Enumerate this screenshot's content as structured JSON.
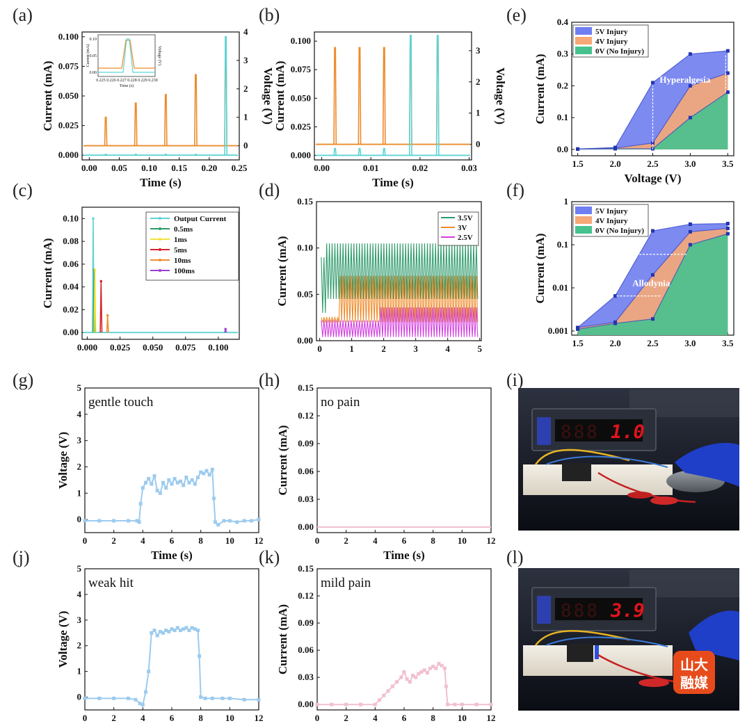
{
  "figure": {
    "panel_labels": [
      "(a)",
      "(b)",
      "(c)",
      "(d)",
      "(e)",
      "(f)",
      "(g)",
      "(h)",
      "(i)",
      "(j)",
      "(k)",
      "(l)"
    ]
  },
  "photos": {
    "i": {
      "display": "1.0",
      "color": "#e0141b"
    },
    "l": {
      "display": "3.9",
      "color": "#e0141b",
      "watermark": [
        "山大",
        "融媒"
      ]
    }
  },
  "colors": {
    "cyan": "#5ed3d4",
    "orange": "#ee8a2a",
    "green_dark": "#2e9a6a",
    "yellow": "#f2e33a",
    "red": "#d4262b",
    "orange2": "#ec8e2e",
    "purple": "#9b3fd3",
    "magenta": "#d33fe0",
    "blue_fill": "#6f7ef0",
    "orange_fill": "#f6a877",
    "green_fill": "#47c28e",
    "light_blue": "#9ccbee",
    "pink": "#f0c0d0"
  },
  "chart_data": [
    {
      "id": "a",
      "type": "line",
      "xlabel": "Time (s)",
      "ylabel": "Current (mA)",
      "y2label": "Voltage (V)",
      "xlim": [
        -0.012,
        0.25
      ],
      "ylim": [
        -0.004,
        0.104
      ],
      "y2lim": [
        -0.5,
        4
      ],
      "xticks": [
        0.0,
        0.05,
        0.1,
        0.15,
        0.2,
        0.25
      ],
      "xticklabels": [
        "0.00",
        "0.05",
        "0.10",
        "0.15",
        "0.20",
        "0.25"
      ],
      "yticks": [
        0.0,
        0.025,
        0.05,
        0.075,
        0.1
      ],
      "yticklabels": [
        "0.000",
        "0.025",
        "0.050",
        "0.075",
        "0.100"
      ],
      "y2ticks": [
        0,
        1,
        2,
        3,
        4
      ],
      "y2ticklabels": [
        "0",
        "1",
        "2",
        "3",
        "4"
      ],
      "series": [
        {
          "kind": "spikes",
          "axis": "y2",
          "color": "orange",
          "baseline": 0,
          "x": [
            0.0275,
            0.0775,
            0.1275,
            0.1775,
            0.2275
          ],
          "values": [
            1.0,
            1.5,
            1.8,
            2.5,
            3.0
          ]
        },
        {
          "kind": "spikes",
          "axis": "y",
          "color": "cyan",
          "baseline": 0.0,
          "x": [
            0.0275,
            0.0775,
            0.1275,
            0.1775,
            0.2275
          ],
          "values": [
            0.0008,
            0.0008,
            0.0008,
            0.0008,
            0.1
          ]
        }
      ],
      "inset": {
        "xlabel": "Time (s)",
        "ylabel": "Current (mA)",
        "y2label": "Voltage (V)",
        "xticklabels": [
          "0.225",
          "0.226",
          "0.227",
          "0.228",
          "0.229",
          "0.230"
        ],
        "yticklabels": [
          "0.00",
          "0.05",
          "0.10"
        ]
      }
    },
    {
      "id": "b",
      "type": "line",
      "xlabel": "Time (s)",
      "ylabel": "Current (mA)",
      "y2label": "Voltage (V)",
      "xlim": [
        -0.0015,
        0.0305
      ],
      "ylim": [
        -0.004,
        0.108
      ],
      "y2lim": [
        -0.5,
        3.6
      ],
      "xticks": [
        0.0,
        0.01,
        0.02,
        0.03
      ],
      "xticklabels": [
        "0.00",
        "0.01",
        "0.02",
        "0.03"
      ],
      "yticks": [
        0.0,
        0.025,
        0.05,
        0.075,
        0.1
      ],
      "yticklabels": [
        "0.000",
        "0.025",
        "0.050",
        "0.075",
        "0.100"
      ],
      "y2ticks": [
        0,
        1,
        2,
        3
      ],
      "y2ticklabels": [
        "0",
        "1",
        "2",
        "3"
      ],
      "series": [
        {
          "kind": "spikes",
          "axis": "y2",
          "color": "orange",
          "baseline": 0,
          "x": [
            0.0027,
            0.0077,
            0.0127,
            0.0181,
            0.0236
          ],
          "values": [
            3.1,
            3.1,
            3.1,
            3.3,
            3.3
          ]
        },
        {
          "kind": "spikes",
          "axis": "y",
          "color": "cyan",
          "baseline": 0.0,
          "x": [
            0.0027,
            0.0077,
            0.0127,
            0.0181,
            0.0236
          ],
          "values": [
            0.006,
            0.006,
            0.006,
            0.105,
            0.105
          ]
        }
      ]
    },
    {
      "id": "c",
      "type": "line",
      "xlabel": "",
      "ylabel": "Current (mA)",
      "xlim": [
        -0.004,
        0.116
      ],
      "ylim": [
        -0.006,
        0.11
      ],
      "xticks": [
        0.0,
        0.025,
        0.05,
        0.075,
        0.1
      ],
      "xticklabels": [
        "0.000",
        "0.025",
        "0.050",
        "0.075",
        "0.100"
      ],
      "yticks": [
        0.0,
        0.02,
        0.04,
        0.06,
        0.08,
        0.1
      ],
      "yticklabels": [
        "0.00",
        "0.02",
        "0.04",
        "0.06",
        "0.08",
        "0.10"
      ],
      "legend": [
        "Output Current",
        "0.5ms",
        "1ms",
        "5ms",
        "10ms",
        "100ms"
      ],
      "legend_colors": [
        "cyan",
        "green_dark",
        "yellow",
        "red",
        "orange2",
        "purple"
      ],
      "series": [
        {
          "name": "Output Current",
          "color": "cyan",
          "kind": "spikes",
          "baseline": 0.0,
          "x": [
            0.0045
          ],
          "values": [
            0.1
          ]
        },
        {
          "name": "0.5ms",
          "color": "green_dark",
          "kind": "spikes",
          "baseline": 0.0,
          "x": [
            0.0052
          ],
          "values": [
            0.055
          ]
        },
        {
          "name": "1ms",
          "color": "yellow",
          "kind": "spikes",
          "baseline": 0.0,
          "x": [
            0.0058
          ],
          "values": [
            0.055
          ]
        },
        {
          "name": "5ms",
          "color": "red",
          "kind": "spikes",
          "baseline": 0.0,
          "x": [
            0.0105
          ],
          "values": [
            0.045
          ]
        },
        {
          "name": "10ms",
          "color": "orange2",
          "kind": "spikes",
          "baseline": 0.0,
          "x": [
            0.0155
          ],
          "values": [
            0.015
          ]
        },
        {
          "name": "100ms",
          "color": "purple",
          "kind": "spikes",
          "baseline": 0.0,
          "x": [
            0.1055
          ],
          "values": [
            0.003
          ]
        }
      ]
    },
    {
      "id": "d",
      "type": "line",
      "xlabel": "",
      "ylabel": "Current (mA)",
      "xlim": [
        -0.1,
        5.05
      ],
      "ylim": [
        0.0,
        0.15
      ],
      "xticks": [
        0,
        1,
        2,
        3,
        4,
        5
      ],
      "xticklabels": [
        "0",
        "1",
        "2",
        "3",
        "4",
        "5"
      ],
      "yticks": [
        0.0,
        0.05,
        0.1,
        0.15
      ],
      "yticklabels": [
        "0.00",
        "0.05",
        "0.10",
        "0.15"
      ],
      "legend": [
        "3.5V",
        "3V",
        "2.5V"
      ],
      "legend_colors": [
        "green_dark",
        "orange",
        "magenta"
      ],
      "series": [
        {
          "name": "3.5V",
          "color": "green_dark",
          "kind": "osc",
          "t_start": 0.05,
          "t_end": 4.95,
          "period": 0.085,
          "segments": [
            {
              "t0": 0.05,
              "t1": 0.2,
              "low": 0.03,
              "high": 0.09
            },
            {
              "t0": 0.2,
              "t1": 4.95,
              "low": 0.045,
              "high": 0.105
            }
          ]
        },
        {
          "name": "3V",
          "color": "orange",
          "kind": "osc",
          "t_start": 0.05,
          "t_end": 4.95,
          "period": 0.085,
          "segments": [
            {
              "t0": 0.05,
              "t1": 0.6,
              "low": 0.02,
              "high": 0.025
            },
            {
              "t0": 0.6,
              "t1": 4.95,
              "low": 0.02,
              "high": 0.07
            }
          ]
        },
        {
          "name": "2.5V",
          "color": "magenta",
          "kind": "osc",
          "t_start": 0.05,
          "t_end": 4.95,
          "period": 0.085,
          "segments": [
            {
              "t0": 0.05,
              "t1": 1.85,
              "low": 0.004,
              "high": 0.022
            },
            {
              "t0": 1.85,
              "t1": 4.95,
              "low": 0.004,
              "high": 0.036
            }
          ]
        }
      ]
    },
    {
      "id": "e",
      "type": "area",
      "xlabel": "Voltage (V)",
      "ylabel": "Current (mA)",
      "xlim": [
        1.42,
        3.58
      ],
      "ylim": [
        -0.02,
        0.4
      ],
      "xticks": [
        1.5,
        2.0,
        2.5,
        3.0,
        3.5
      ],
      "xticklabels": [
        "1.5",
        "2.0",
        "2.5",
        "3.0",
        "3.5"
      ],
      "yticks": [
        0.0,
        0.1,
        0.2,
        0.3,
        0.4
      ],
      "yticklabels": [
        "0.0",
        "0.1",
        "0.2",
        "0.3",
        "0.4"
      ],
      "x": [
        1.5,
        2.0,
        2.5,
        3.0,
        3.5
      ],
      "series": [
        {
          "name": "5V Injury",
          "color": "blue_fill",
          "values": [
            0.001,
            0.006,
            0.21,
            0.3,
            0.31
          ]
        },
        {
          "name": "4V Injury",
          "color": "orange_fill",
          "values": [
            0.001,
            0.004,
            0.02,
            0.2,
            0.24
          ]
        },
        {
          "name": "0V (No Injury)",
          "color": "green_fill",
          "values": [
            0.001,
            0.002,
            0.002,
            0.1,
            0.18
          ]
        }
      ],
      "annotation": "Hyperalgesia"
    },
    {
      "id": "f",
      "type": "area",
      "scale": "log",
      "xlabel": "",
      "ylabel": "Current (mA)",
      "xlim": [
        1.42,
        3.58
      ],
      "ylim": [
        0.0008,
        1.0
      ],
      "xticks": [
        1.5,
        2.0,
        2.5,
        3.0,
        3.5
      ],
      "xticklabels": [
        "1.5",
        "2.0",
        "2.5",
        "3.0",
        "3.5"
      ],
      "yticks": [
        0.001,
        0.01,
        0.1,
        1
      ],
      "yticklabels": [
        "0.001",
        "0.01",
        "0.1",
        "1"
      ],
      "x": [
        1.5,
        2.0,
        2.5,
        3.0,
        3.5
      ],
      "series": [
        {
          "name": "5V Injury",
          "color": "blue_fill",
          "values": [
            0.0012,
            0.0065,
            0.21,
            0.3,
            0.31
          ]
        },
        {
          "name": "4V Injury",
          "color": "orange_fill",
          "values": [
            0.0012,
            0.0016,
            0.02,
            0.2,
            0.24
          ]
        },
        {
          "name": "0V (No Injury)",
          "color": "green_fill",
          "values": [
            0.0011,
            0.0015,
            0.0019,
            0.1,
            0.18
          ]
        }
      ],
      "annotation": "Allodynia"
    },
    {
      "id": "g",
      "type": "line",
      "xlabel": "Time (s)",
      "ylabel": "Voltage (V)",
      "xlim": [
        0,
        12
      ],
      "ylim": [
        -0.5,
        5
      ],
      "xticks": [
        0,
        2,
        4,
        6,
        8,
        10,
        12
      ],
      "xticklabels": [
        "0",
        "2",
        "4",
        "6",
        "8",
        "10",
        "12"
      ],
      "yticks": [
        0,
        1,
        2,
        3,
        4,
        5
      ],
      "yticklabels": [
        "0",
        "1",
        "2",
        "3",
        "4",
        "5"
      ],
      "annotation": "gentle touch",
      "series": [
        {
          "color": "light_blue",
          "markers": true,
          "x": [
            0,
            1,
            2,
            3,
            3.6,
            3.75,
            3.85,
            4.0,
            4.2,
            4.4,
            4.6,
            4.8,
            5.0,
            5.2,
            5.4,
            5.6,
            5.8,
            6.0,
            6.2,
            6.4,
            6.6,
            6.8,
            7.0,
            7.2,
            7.4,
            7.6,
            7.8,
            8.0,
            8.2,
            8.4,
            8.6,
            8.8,
            8.9,
            9.0,
            9.2,
            9.6,
            10,
            10.5,
            11,
            11.5,
            12
          ],
          "values": [
            -0.05,
            -0.05,
            -0.05,
            -0.05,
            -0.05,
            -0.1,
            0.6,
            1.2,
            1.4,
            1.55,
            1.35,
            1.65,
            1.1,
            1.0,
            1.4,
            1.2,
            1.5,
            1.35,
            1.55,
            1.4,
            1.45,
            1.3,
            1.6,
            1.4,
            1.5,
            1.35,
            1.6,
            1.8,
            1.75,
            1.85,
            1.7,
            1.9,
            0.8,
            -0.1,
            -0.2,
            -0.05,
            -0.05,
            -0.1,
            -0.05,
            -0.05,
            0.0
          ]
        }
      ]
    },
    {
      "id": "h",
      "type": "line",
      "xlabel": "Time (s)",
      "ylabel": "Current (mA)",
      "xlim": [
        0,
        12
      ],
      "ylim": [
        -0.006,
        0.15
      ],
      "xticks": [
        0,
        2,
        4,
        6,
        8,
        10,
        12
      ],
      "xticklabels": [
        "0",
        "2",
        "4",
        "6",
        "8",
        "10",
        "12"
      ],
      "yticks": [
        0.0,
        0.03,
        0.06,
        0.09,
        0.12,
        0.15
      ],
      "yticklabels": [
        "0.00",
        "0.03",
        "0.06",
        "0.09",
        "0.12",
        "0.15"
      ],
      "annotation": "no pain",
      "series": [
        {
          "color": "pink",
          "markers": false,
          "x": [
            0,
            12
          ],
          "values": [
            0.0,
            0.0
          ]
        }
      ]
    },
    {
      "id": "j",
      "type": "line",
      "xlabel": "",
      "ylabel": "Voltage (V)",
      "xlim": [
        0,
        12
      ],
      "ylim": [
        -0.5,
        5
      ],
      "xticks": [
        0,
        2,
        4,
        6,
        8,
        10,
        12
      ],
      "xticklabels": [
        "0",
        "2",
        "4",
        "6",
        "8",
        "10",
        "12"
      ],
      "yticks": [
        0,
        1,
        2,
        3,
        4,
        5
      ],
      "yticklabels": [
        "0",
        "1",
        "2",
        "3",
        "4",
        "5"
      ],
      "annotation": "weak hit",
      "series": [
        {
          "color": "light_blue",
          "markers": true,
          "x": [
            0,
            1,
            2,
            3,
            3.5,
            3.8,
            4.0,
            4.2,
            4.4,
            4.6,
            4.8,
            5.0,
            5.2,
            5.4,
            5.6,
            5.8,
            6.0,
            6.2,
            6.4,
            6.6,
            6.8,
            7.0,
            7.2,
            7.4,
            7.6,
            7.8,
            7.9,
            8.0,
            8.3,
            8.8,
            9.5,
            10,
            11,
            12
          ],
          "values": [
            -0.05,
            -0.05,
            -0.05,
            -0.05,
            -0.1,
            -0.25,
            -0.3,
            0.2,
            1.0,
            2.5,
            2.6,
            2.4,
            2.55,
            2.5,
            2.6,
            2.55,
            2.65,
            2.6,
            2.7,
            2.6,
            2.65,
            2.7,
            2.6,
            2.7,
            2.65,
            2.6,
            1.6,
            0.0,
            -0.05,
            -0.05,
            -0.05,
            -0.05,
            -0.1,
            -0.1
          ]
        }
      ]
    },
    {
      "id": "k",
      "type": "line",
      "xlabel": "",
      "ylabel": "Current (mA)",
      "xlim": [
        0,
        12
      ],
      "ylim": [
        -0.006,
        0.15
      ],
      "xticks": [
        0,
        2,
        4,
        6,
        8,
        10,
        12
      ],
      "xticklabels": [
        "0",
        "2",
        "4",
        "6",
        "8",
        "10",
        "12"
      ],
      "yticks": [
        0.0,
        0.03,
        0.06,
        0.09,
        0.12,
        0.15
      ],
      "yticklabels": [
        "0.00",
        "0.03",
        "0.06",
        "0.09",
        "0.12",
        "0.15"
      ],
      "annotation": "mild pain",
      "series": [
        {
          "color": "pink",
          "markers": true,
          "x": [
            0,
            1,
            2,
            3,
            4,
            4.3,
            4.6,
            4.9,
            5.2,
            5.5,
            5.8,
            6.0,
            6.2,
            6.4,
            6.6,
            6.8,
            7.0,
            7.2,
            7.4,
            7.6,
            7.8,
            8.0,
            8.2,
            8.4,
            8.6,
            8.8,
            8.9,
            9.0,
            9.5,
            10,
            11,
            12
          ],
          "values": [
            0.0,
            0.0,
            0.0,
            0.0,
            0.0,
            0.005,
            0.01,
            0.015,
            0.02,
            0.025,
            0.03,
            0.036,
            0.028,
            0.025,
            0.032,
            0.03,
            0.034,
            0.036,
            0.038,
            0.035,
            0.04,
            0.042,
            0.04,
            0.045,
            0.043,
            0.04,
            0.02,
            0.0,
            0.0,
            0.0,
            0.0,
            0.0
          ]
        }
      ]
    }
  ]
}
